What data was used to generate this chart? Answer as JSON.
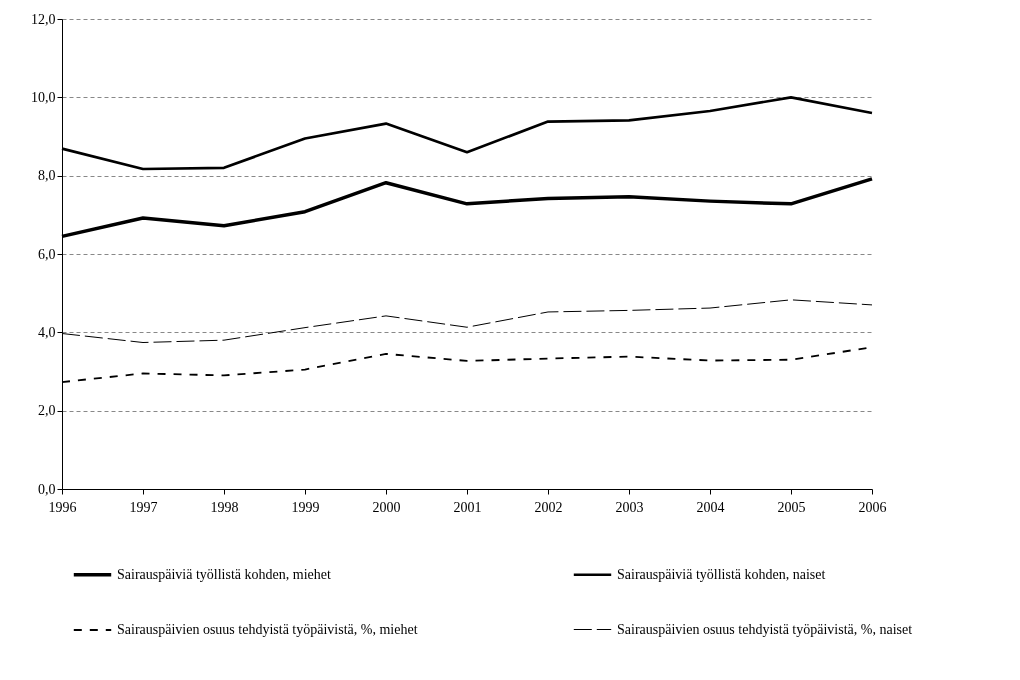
{
  "chart_data": {
    "type": "line",
    "x": [
      1996,
      1997,
      1998,
      1999,
      2000,
      2001,
      2002,
      2003,
      2004,
      2005,
      2006
    ],
    "series": [
      {
        "name": "Sairauspäiviä työllistä kohden, miehet",
        "color": "#000000",
        "line_style": "solid",
        "values": [
          6.45,
          6.92,
          6.72,
          7.08,
          7.82,
          7.28,
          7.42,
          7.46,
          7.35,
          7.28,
          7.92
        ]
      },
      {
        "name": "Sairauspäiviä työllistä kohden, naiset",
        "color": "#000000",
        "line_style": "solid",
        "values": [
          8.69,
          8.17,
          8.2,
          8.95,
          9.33,
          8.6,
          9.38,
          9.41,
          9.65,
          10.0,
          9.6
        ]
      },
      {
        "name": "Sairauspäivien osuus tehdyistä työpäivistä, %, miehet",
        "color": "#000000",
        "line_style": "dashed",
        "values": [
          2.73,
          2.95,
          2.9,
          3.05,
          3.45,
          3.27,
          3.33,
          3.38,
          3.28,
          3.3,
          3.62
        ]
      },
      {
        "name": "Sairauspäivien osuus tehdyistä työpäivistä, %, naiset",
        "color": "#000000",
        "line_style": "dashed",
        "values": [
          3.97,
          3.74,
          3.8,
          4.12,
          4.42,
          4.13,
          4.52,
          4.56,
          4.62,
          4.83,
          4.7
        ]
      }
    ],
    "xlim": [
      1996,
      2006
    ],
    "xticks": [
      1996,
      1997,
      1998,
      1999,
      2000,
      2001,
      2002,
      2003,
      2004,
      2005,
      2006
    ],
    "ylim": [
      0,
      12
    ],
    "yticks": [
      {
        "value": 0,
        "label": "0,0"
      },
      {
        "value": 2,
        "label": "2,0"
      },
      {
        "value": 4,
        "label": "4,0"
      },
      {
        "value": 6,
        "label": "6,0"
      },
      {
        "value": 8,
        "label": "8,0"
      },
      {
        "value": 10,
        "label": "10,0"
      },
      {
        "value": 12,
        "label": "12,0"
      }
    ],
    "grid": "y",
    "legend": "bottom",
    "marker": "none"
  }
}
